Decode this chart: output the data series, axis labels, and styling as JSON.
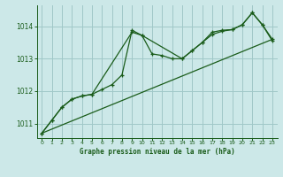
{
  "title": "Graphe pression niveau de la mer (hPa)",
  "background_color": "#cce8e8",
  "grid_color": "#a0c8c8",
  "line_color": "#1a5c1a",
  "xlim": [
    -0.5,
    23.5
  ],
  "ylim": [
    1010.55,
    1014.65
  ],
  "yticks": [
    1011,
    1012,
    1013,
    1014
  ],
  "xticks": [
    0,
    1,
    2,
    3,
    4,
    5,
    6,
    7,
    8,
    9,
    10,
    11,
    12,
    13,
    14,
    15,
    16,
    17,
    18,
    19,
    20,
    21,
    22,
    23
  ],
  "series1_x": [
    0,
    1,
    2,
    3,
    4,
    5,
    6,
    7,
    8,
    9,
    10,
    11,
    12,
    13,
    14,
    15,
    16,
    17,
    18,
    19,
    20,
    21,
    22,
    23
  ],
  "series1_y": [
    1010.7,
    1011.1,
    1011.5,
    1011.75,
    1011.85,
    1011.9,
    1012.05,
    1012.2,
    1012.5,
    1013.88,
    1013.72,
    1013.15,
    1013.1,
    1013.0,
    1013.0,
    1013.25,
    1013.5,
    1013.82,
    1013.88,
    1013.9,
    1014.05,
    1014.42,
    1014.05,
    1013.55
  ],
  "series2_x": [
    0,
    1,
    2,
    3,
    4,
    5,
    9,
    10,
    14,
    15,
    16,
    17,
    18,
    19,
    20,
    21,
    22,
    23
  ],
  "series2_y": [
    1010.7,
    1011.1,
    1011.5,
    1011.75,
    1011.85,
    1011.9,
    1013.82,
    1013.72,
    1013.0,
    1013.25,
    1013.5,
    1013.75,
    1013.85,
    1013.9,
    1014.05,
    1014.42,
    1014.05,
    1013.6
  ],
  "series3_x": [
    0,
    23
  ],
  "series3_y": [
    1010.7,
    1013.6
  ]
}
